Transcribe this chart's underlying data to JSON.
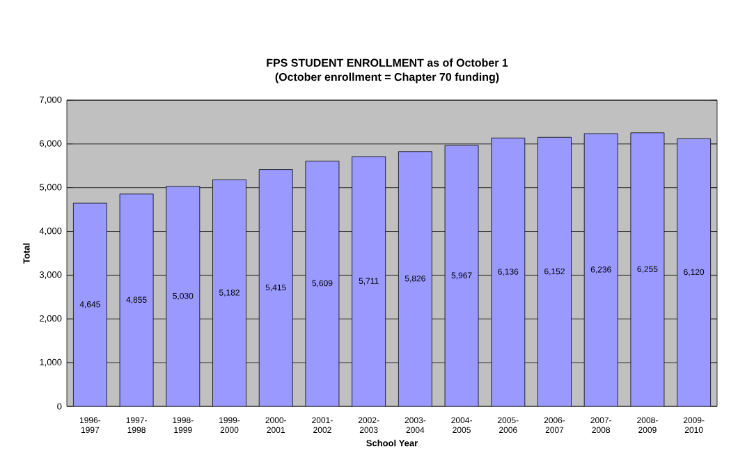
{
  "chart_data": {
    "type": "bar",
    "title": "FPS STUDENT ENROLLMENT as of October 1",
    "subtitle": "(October enrollment = Chapter 70 funding)",
    "xlabel": "School Year",
    "ylabel": "Total",
    "categories": [
      "1996-1997",
      "1997-1998",
      "1998-1999",
      "1999-2000",
      "2000-2001",
      "2001-2002",
      "2002-2003",
      "2003-2004",
      "2004-2005",
      "2005-2006",
      "2006-2007",
      "2007-2008",
      "2008-2009",
      "2009-2010"
    ],
    "values": [
      4645,
      4855,
      5030,
      5182,
      5415,
      5609,
      5711,
      5826,
      5967,
      6136,
      6152,
      6236,
      6255,
      6120
    ],
    "value_labels": [
      "4,645",
      "4,855",
      "5,030",
      "5,182",
      "5,415",
      "5,609",
      "5,711",
      "5,826",
      "5,967",
      "6,136",
      "6,152",
      "6,236",
      "6,255",
      "6,120"
    ],
    "color": "#9999ff",
    "ylim": [
      0,
      7000
    ],
    "yticks": [
      0,
      {
        "value": 1000,
        "label": "1,000"
      },
      {
        "value": 2000,
        "label": "2,000"
      },
      {
        "value": 3000,
        "label": "3,000"
      },
      {
        "value": 4000,
        "label": "4,000"
      },
      {
        "value": 5000,
        "label": "5,000"
      },
      {
        "value": 6000,
        "label": "6,000"
      },
      {
        "value": 7000,
        "label": "7,000"
      }
    ],
    "grid": "y"
  }
}
